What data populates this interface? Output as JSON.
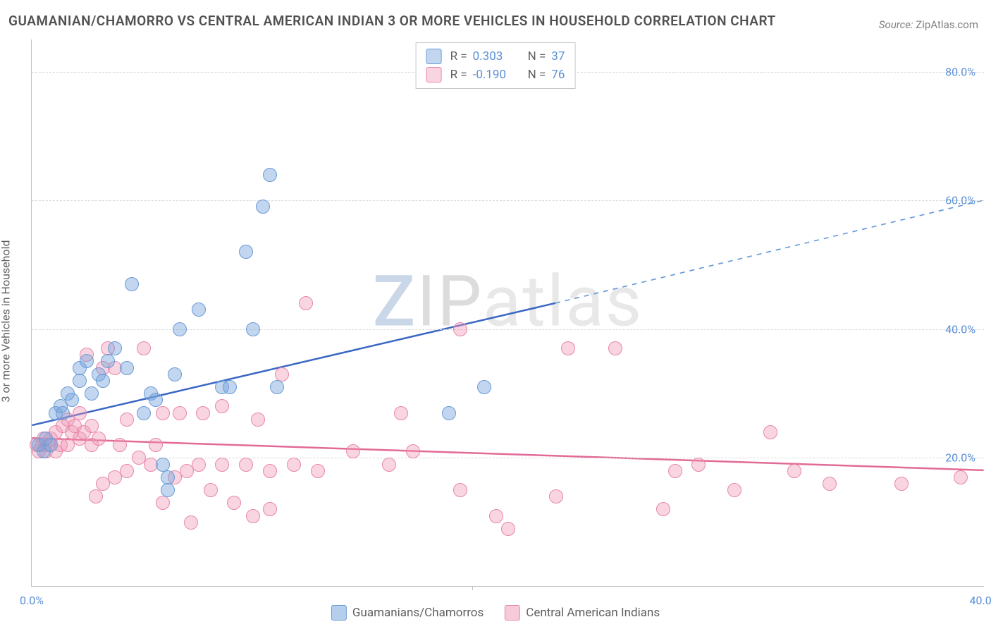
{
  "title": "GUAMANIAN/CHAMORRO VS CENTRAL AMERICAN INDIAN 3 OR MORE VEHICLES IN HOUSEHOLD CORRELATION CHART",
  "source_label": "Source:",
  "source_value": "ZipAtlas.com",
  "ylabel": "3 or more Vehicles in Household",
  "watermark": {
    "z": "Z",
    "ip": "IP",
    "atlas": "atlas"
  },
  "chart": {
    "type": "scatter",
    "background_color": "#ffffff",
    "grid_color": "#d8d8d8",
    "axis_color": "#c0c0c0",
    "tick_color": "#5b8fd6",
    "label_color": "#606060",
    "title_color": "#505050",
    "title_fontsize": 19,
    "label_fontsize": 16,
    "tick_fontsize": 16,
    "xlim": [
      0,
      40
    ],
    "ylim": [
      0,
      85
    ],
    "xticks": [
      0,
      40
    ],
    "xtick_labels": [
      "0.0%",
      "40.0%"
    ],
    "xtick_minor": [
      18.5
    ],
    "yticks": [
      20,
      40,
      60,
      80
    ],
    "ytick_labels": [
      "20.0%",
      "40.0%",
      "60.0%",
      "80.0%"
    ],
    "marker_radius": 10,
    "marker_stroke_width": 1.5,
    "trendline_width": 2.5,
    "series": [
      {
        "name": "Guamanians/Chamorros",
        "fill": "rgba(120,165,220,0.45)",
        "stroke": "#6a9bd8",
        "trend_color": "#3a66c4",
        "trend_dash_color": "#6a9bd8",
        "R": "0.303",
        "N": "37",
        "trend": {
          "x1": 0,
          "y1": 25,
          "x2_solid": 22,
          "y2_solid": 44,
          "x2": 40,
          "y2": 60
        },
        "points": [
          [
            0.3,
            22
          ],
          [
            0.5,
            21
          ],
          [
            0.6,
            23
          ],
          [
            0.8,
            22
          ],
          [
            1.0,
            27
          ],
          [
            1.2,
            28
          ],
          [
            1.3,
            27
          ],
          [
            1.5,
            30
          ],
          [
            1.7,
            29
          ],
          [
            2.0,
            32
          ],
          [
            2.0,
            34
          ],
          [
            2.3,
            35
          ],
          [
            2.5,
            30
          ],
          [
            2.8,
            33
          ],
          [
            3.0,
            32
          ],
          [
            3.2,
            35
          ],
          [
            3.5,
            37
          ],
          [
            4.0,
            34
          ],
          [
            4.2,
            47
          ],
          [
            4.7,
            27
          ],
          [
            5.0,
            30
          ],
          [
            5.2,
            29
          ],
          [
            5.5,
            19
          ],
          [
            5.7,
            15
          ],
          [
            5.7,
            17
          ],
          [
            6.0,
            33
          ],
          [
            6.2,
            40
          ],
          [
            7.0,
            43
          ],
          [
            8.0,
            31
          ],
          [
            8.3,
            31
          ],
          [
            9.0,
            52
          ],
          [
            9.3,
            40
          ],
          [
            9.7,
            59
          ],
          [
            10.0,
            64
          ],
          [
            10.3,
            31
          ],
          [
            17.5,
            27
          ],
          [
            19.0,
            31
          ]
        ]
      },
      {
        "name": "Central American Indians",
        "fill": "rgba(240,150,180,0.40)",
        "stroke": "#e887aa",
        "trend_color": "#e26a97",
        "R": "-0.190",
        "N": "76",
        "trend": {
          "x1": 0,
          "y1": 23,
          "x2": 40,
          "y2": 18
        },
        "points": [
          [
            0.2,
            22
          ],
          [
            0.3,
            21
          ],
          [
            0.4,
            22
          ],
          [
            0.5,
            23
          ],
          [
            0.6,
            21
          ],
          [
            0.7,
            22
          ],
          [
            0.8,
            23
          ],
          [
            1.0,
            24
          ],
          [
            1.0,
            21
          ],
          [
            1.2,
            22
          ],
          [
            1.3,
            25
          ],
          [
            1.5,
            26
          ],
          [
            1.5,
            22
          ],
          [
            1.7,
            24
          ],
          [
            1.8,
            25
          ],
          [
            2.0,
            27
          ],
          [
            2.0,
            23
          ],
          [
            2.2,
            24
          ],
          [
            2.3,
            36
          ],
          [
            2.5,
            22
          ],
          [
            2.5,
            25
          ],
          [
            2.7,
            14
          ],
          [
            2.8,
            23
          ],
          [
            3.0,
            16
          ],
          [
            3.0,
            34
          ],
          [
            3.2,
            37
          ],
          [
            3.5,
            17
          ],
          [
            3.5,
            34
          ],
          [
            3.7,
            22
          ],
          [
            4.0,
            26
          ],
          [
            4.0,
            18
          ],
          [
            4.5,
            20
          ],
          [
            4.7,
            37
          ],
          [
            5.0,
            19
          ],
          [
            5.2,
            22
          ],
          [
            5.5,
            13
          ],
          [
            5.5,
            27
          ],
          [
            6.0,
            17
          ],
          [
            6.2,
            27
          ],
          [
            6.5,
            18
          ],
          [
            6.7,
            10
          ],
          [
            7.0,
            19
          ],
          [
            7.2,
            27
          ],
          [
            7.5,
            15
          ],
          [
            8.0,
            19
          ],
          [
            8.0,
            28
          ],
          [
            8.5,
            13
          ],
          [
            9.0,
            19
          ],
          [
            9.3,
            11
          ],
          [
            9.5,
            26
          ],
          [
            10.0,
            12
          ],
          [
            10.0,
            18
          ],
          [
            10.5,
            33
          ],
          [
            11.0,
            19
          ],
          [
            11.5,
            44
          ],
          [
            12.0,
            18
          ],
          [
            13.5,
            21
          ],
          [
            15.0,
            19
          ],
          [
            15.5,
            27
          ],
          [
            16.0,
            21
          ],
          [
            18.0,
            40
          ],
          [
            18.0,
            15
          ],
          [
            19.5,
            11
          ],
          [
            20.0,
            9
          ],
          [
            22.0,
            14
          ],
          [
            22.5,
            37
          ],
          [
            24.5,
            37
          ],
          [
            26.5,
            12
          ],
          [
            27.0,
            18
          ],
          [
            28.0,
            19
          ],
          [
            29.5,
            15
          ],
          [
            31.0,
            24
          ],
          [
            32.0,
            18
          ],
          [
            33.5,
            16
          ],
          [
            36.5,
            16
          ],
          [
            39.0,
            17
          ]
        ]
      }
    ],
    "legend_bottom": [
      {
        "label": "Guamanians/Chamorros",
        "fill": "rgba(120,165,220,0.55)",
        "stroke": "#6a9bd8"
      },
      {
        "label": "Central American Indians",
        "fill": "rgba(240,150,180,0.50)",
        "stroke": "#e887aa"
      }
    ]
  }
}
